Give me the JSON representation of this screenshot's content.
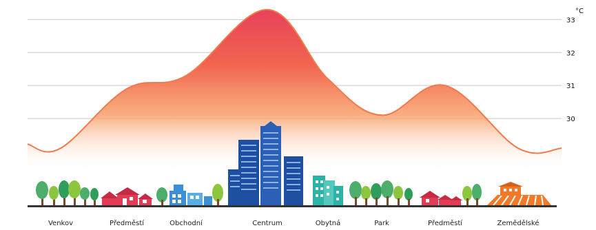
{
  "chart_data": {
    "type": "area",
    "unit": "°C",
    "ylim": [
      29,
      33.3
    ],
    "yticks": [
      30,
      31,
      32,
      33
    ],
    "grid": true,
    "categories": [
      "Venkov",
      "Předměstí",
      "Obchodní",
      "Centrum",
      "Obytná",
      "Park",
      "Předměstí",
      "Zemědělské"
    ],
    "values": [
      29.1,
      30.9,
      31.3,
      33.3,
      31.2,
      30.1,
      31.0,
      29.1
    ],
    "colors": {
      "curve": "#f07a4a",
      "fill_top": "#e8425a",
      "fill_mid": "#f58b52",
      "grid": "#c9c9c9",
      "ground": "#333333"
    }
  }
}
